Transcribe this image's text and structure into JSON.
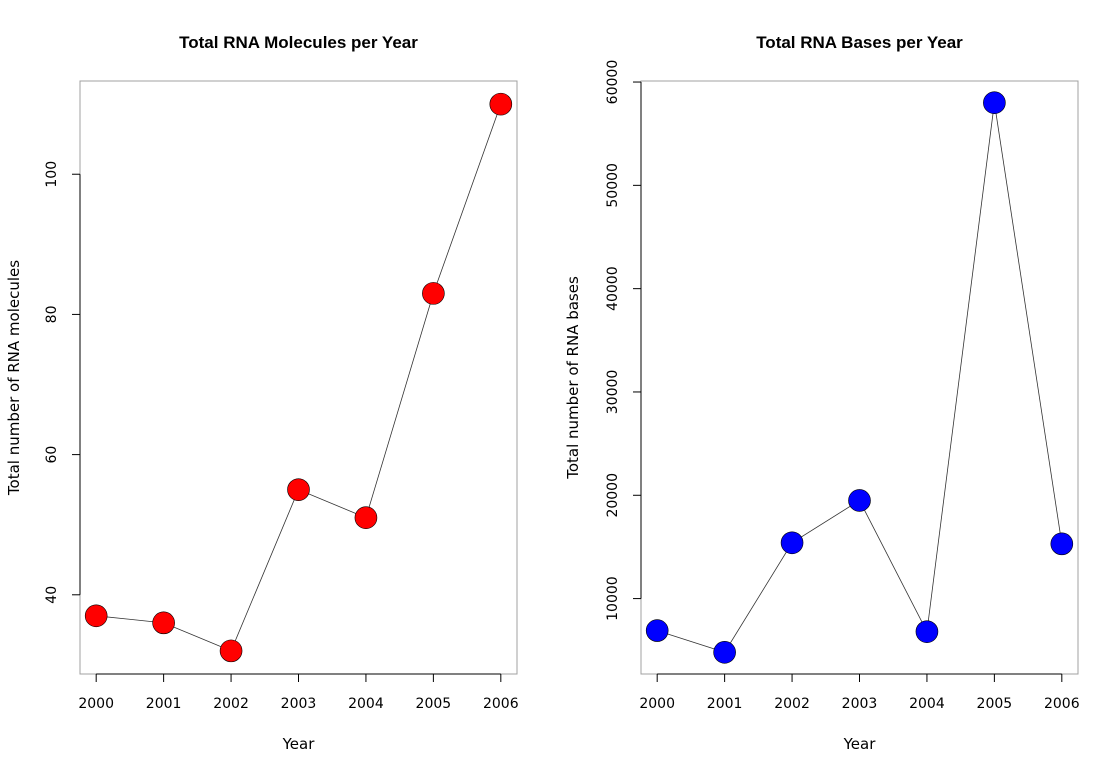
{
  "chart_data": [
    {
      "type": "line",
      "title": "Total RNA Molecules per Year",
      "xlabel": "Year",
      "ylabel": "Total number of RNA molecules",
      "x": [
        2000,
        2001,
        2002,
        2003,
        2004,
        2005,
        2006
      ],
      "y": [
        37,
        36,
        32,
        55,
        51,
        83,
        110
      ],
      "xticks": [
        2000,
        2001,
        2002,
        2003,
        2004,
        2005,
        2006
      ],
      "yticks": [
        40,
        60,
        80,
        100
      ],
      "ylim": [
        28.7,
        113.3
      ],
      "point_color": "#ff0000",
      "grid": false
    },
    {
      "type": "line",
      "title": "Total RNA Bases per Year",
      "xlabel": "Year",
      "ylabel": "Total number of RNA bases",
      "x": [
        2000,
        2001,
        2002,
        2003,
        2004,
        2005,
        2006
      ],
      "y": [
        6900,
        4800,
        15400,
        19500,
        6800,
        58000,
        15300
      ],
      "xticks": [
        2000,
        2001,
        2002,
        2003,
        2004,
        2005,
        2006
      ],
      "yticks": [
        10000,
        20000,
        30000,
        40000,
        50000,
        60000
      ],
      "ylim": [
        2700,
        60100
      ],
      "point_color": "#0000ff",
      "grid": false
    }
  ]
}
